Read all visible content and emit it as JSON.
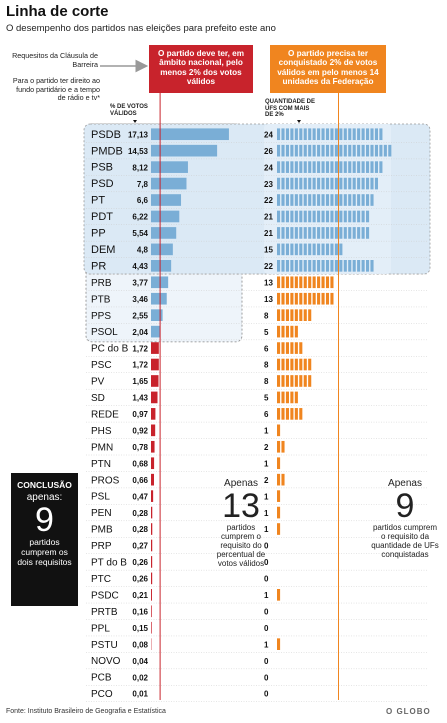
{
  "header": {
    "title": "Linha de corte",
    "subtitle": "O desempenho dos partidos nas eleições para prefeito este ano"
  },
  "notes": {
    "barrier": "Requesitos da Cláusula de Barreira",
    "access": "Para o partido ter direito ao fundo partidário e a tempo de rádio e tv*"
  },
  "requirements": {
    "votes": "O partido deve ter, em âmbito nacional, pelo menos 2% dos votos válidos",
    "states": "O partido precisa ter conquistado 2% de votos válidos em pelo menos 14 unidades da Federação"
  },
  "columns": {
    "votes_header": "% DE VOTOS VÁLIDOS",
    "states_header": "QUANTIDADE DE UFS COM MAIS DE 2%"
  },
  "summary": {
    "conclusion_label": "CONCLUSÃO",
    "conclusion_apenas": "apenas:",
    "conclusion_number": "9",
    "conclusion_text": "partidos cumprem os dois requisitos",
    "votes_apenas": "Apenas",
    "votes_number": "13",
    "votes_text": "partidos cumprem o requisito do percentual de votos válidos",
    "states_apenas": "Apenas",
    "states_number": "9",
    "states_text": "partidos cumprem o requisito da quantidade de UFs conquistadas"
  },
  "footer": {
    "source": "Fonte: Instituto Brasileiro de Geografia e Estatística",
    "credit": "O GLOBO"
  },
  "colors": {
    "blue": "#7aaed6",
    "orange": "#f0851f",
    "red": "#c8232c",
    "highlight": "#dbe9f5",
    "black": "#111111"
  },
  "chart_data": {
    "type": "bar",
    "categories": [
      "PSDB",
      "PMDB",
      "PSB",
      "PSD",
      "PT",
      "PDT",
      "PP",
      "DEM",
      "PR",
      "PRB",
      "PTB",
      "PPS",
      "PSOL",
      "PC do B",
      "PSC",
      "PV",
      "SD",
      "REDE",
      "PHS",
      "PMN",
      "PTN",
      "PROS",
      "PSL",
      "PEN",
      "PMB",
      "PRP",
      "PT do B",
      "PTC",
      "PSDC",
      "PRTB",
      "PPL",
      "PSTU",
      "NOVO",
      "PCB",
      "PCO"
    ],
    "series": [
      {
        "name": "% DE VOTOS VÁLIDOS",
        "values": [
          17.13,
          14.53,
          8.12,
          7.8,
          6.6,
          6.22,
          5.54,
          4.8,
          4.43,
          3.77,
          3.46,
          2.55,
          2.04,
          1.72,
          1.72,
          1.65,
          1.43,
          0.97,
          0.92,
          0.78,
          0.68,
          0.66,
          0.47,
          0.28,
          0.28,
          0.27,
          0.26,
          0.26,
          0.21,
          0.16,
          0.15,
          0.08,
          0.04,
          0.02,
          0.01
        ],
        "labels": [
          "17,13",
          "14,53",
          "8,12",
          "7,8",
          "6,6",
          "6,22",
          "5,54",
          "4,8",
          "4,43",
          "3,77",
          "3,46",
          "2,55",
          "2,04",
          "1,72",
          "1,72",
          "1,65",
          "1,43",
          "0,97",
          "0,92",
          "0,78",
          "0,68",
          "0,66",
          "0,47",
          "0,28",
          "0,28",
          "0,27",
          "0,26",
          "0,26",
          "0,21",
          "0,16",
          "0,15",
          "0,08",
          "0,04",
          "0,02",
          "0,01"
        ]
      },
      {
        "name": "QUANTIDADE DE UFS COM MAIS DE 2%",
        "values": [
          24,
          26,
          24,
          23,
          22,
          21,
          21,
          15,
          22,
          13,
          13,
          8,
          5,
          6,
          8,
          8,
          5,
          6,
          1,
          2,
          1,
          2,
          1,
          1,
          1,
          0,
          0,
          0,
          1,
          0,
          0,
          1,
          0,
          0,
          0
        ]
      }
    ],
    "votes_threshold": 2,
    "states_threshold": 14
  }
}
